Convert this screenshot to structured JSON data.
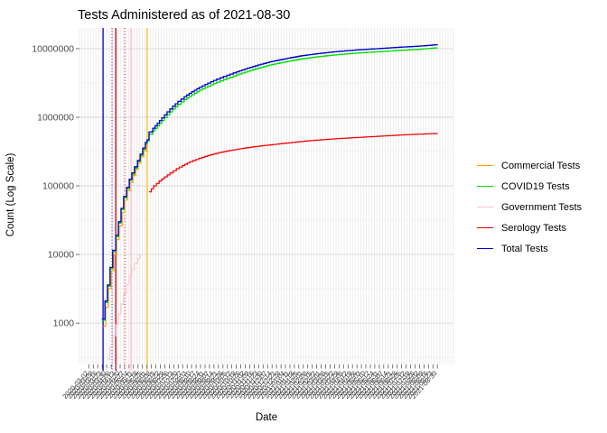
{
  "title": "Tests Administered as of 2021-08-30",
  "x_axis": {
    "label": "Date",
    "tick_dates": [
      "2020-03-02",
      "2020-03-09",
      "2020-03-16",
      "2020-03-23",
      "2020-03-30",
      "2020-04-06",
      "2020-04-13",
      "2020-04-20",
      "2020-04-27",
      "2020-05-04",
      "2020-05-11",
      "2020-05-18",
      "2020-05-25",
      "2020-06-01",
      "2020-06-08",
      "2020-06-15",
      "2020-06-22",
      "2020-06-29",
      "2020-07-06",
      "2020-07-13",
      "2020-07-20",
      "2020-07-27",
      "2020-08-03",
      "2020-08-10",
      "2020-08-17",
      "2020-08-24",
      "2020-08-31",
      "2020-09-07",
      "2020-09-14",
      "2020-09-21",
      "2020-09-28",
      "2020-10-05",
      "2020-10-12",
      "2020-10-19",
      "2020-10-26",
      "2020-11-02",
      "2020-11-09",
      "2020-11-16",
      "2020-11-23",
      "2020-11-30",
      "2020-12-07",
      "2020-12-14",
      "2020-12-21",
      "2020-12-28",
      "2021-01-04",
      "2021-01-11",
      "2021-01-18",
      "2021-01-25",
      "2021-02-01",
      "2021-02-08",
      "2021-02-15",
      "2021-02-22",
      "2021-03-01",
      "2021-03-08",
      "2021-03-15",
      "2021-03-22",
      "2021-03-29",
      "2021-04-05",
      "2021-04-12",
      "2021-04-19",
      "2021-04-26",
      "2021-05-03",
      "2021-05-10",
      "2021-05-17",
      "2021-05-24",
      "2021-05-31",
      "2021-06-07",
      "2021-06-14",
      "2021-06-21",
      "2021-06-28",
      "2021-07-05",
      "2021-07-12",
      "2021-07-19",
      "2021-07-26",
      "2021-08-02",
      "2021-08-09",
      "2021-08-16",
      "2021-08-23",
      "2021-08-30"
    ]
  },
  "y_axis": {
    "label": "Count (Log Scale)",
    "tick_labels": [
      "10000000",
      "1000000",
      "100000",
      "10000",
      "1000"
    ],
    "tick_values": [
      10000000,
      1000000,
      100000,
      10000,
      1000
    ]
  },
  "legend": {
    "items": [
      {
        "label": "Commercial Tests",
        "color": "#FFA500"
      },
      {
        "label": "COVID19 Tests",
        "color": "#00DD00"
      },
      {
        "label": "Government Tests",
        "color": "#FFC0CB"
      },
      {
        "label": "Serology Tests",
        "color": "#EE0000"
      },
      {
        "label": "Total Tests",
        "color": "#0000CD"
      }
    ]
  },
  "chart_data": {
    "type": "line",
    "title": "Tests Administered as of 2021-08-30",
    "xlabel": "Date",
    "ylabel": "Count (Log Scale)",
    "y_scale": "log10",
    "ylim": [
      250,
      20000000
    ],
    "grid": true,
    "legend_position": "right",
    "line_style": "step-after",
    "series": [
      {
        "name": "Government Tests",
        "color": "#FFC0CB",
        "width": 1.0,
        "points": [
          [
            0.075,
            300
          ],
          [
            0.082,
            450
          ],
          [
            0.089,
            650
          ],
          [
            0.097,
            950
          ],
          [
            0.104,
            1350
          ],
          [
            0.111,
            1900
          ],
          [
            0.118,
            2700
          ],
          [
            0.126,
            3700
          ],
          [
            0.133,
            4900
          ],
          [
            0.14,
            6100
          ],
          [
            0.147,
            7400
          ],
          [
            0.155,
            8800
          ],
          [
            0.162,
            10200
          ]
        ]
      },
      {
        "name": "Commercial Tests",
        "color": "#FFA500",
        "width": 1.2,
        "points": [
          [
            0.063,
            900
          ],
          [
            0.07,
            1700
          ],
          [
            0.077,
            3200
          ],
          [
            0.085,
            5800
          ],
          [
            0.092,
            10000
          ],
          [
            0.099,
            16500
          ],
          [
            0.106,
            26000
          ],
          [
            0.114,
            41000
          ],
          [
            0.121,
            62000
          ],
          [
            0.128,
            85000
          ],
          [
            0.135,
            112000
          ],
          [
            0.143,
            142000
          ],
          [
            0.15,
            175000
          ],
          [
            0.157,
            215000
          ],
          [
            0.164,
            265000
          ],
          [
            0.172,
            325000
          ],
          [
            0.179,
            400000
          ],
          [
            0.181,
            440000
          ]
        ]
      },
      {
        "name": "COVID19 Tests",
        "color": "#00DD00",
        "width": 1.3,
        "points": [
          [
            0.06,
            1100
          ],
          [
            0.068,
            2000
          ],
          [
            0.075,
            3450
          ],
          [
            0.082,
            6200
          ],
          [
            0.089,
            11000
          ],
          [
            0.097,
            18200
          ],
          [
            0.104,
            28800
          ],
          [
            0.111,
            45000
          ],
          [
            0.118,
            67000
          ],
          [
            0.126,
            91000
          ],
          [
            0.133,
            120000
          ],
          [
            0.14,
            148000
          ],
          [
            0.147,
            182000
          ],
          [
            0.155,
            225000
          ],
          [
            0.162,
            278000
          ],
          [
            0.169,
            340000
          ],
          [
            0.176,
            412000
          ],
          [
            0.181,
            450000
          ],
          [
            0.186,
            565000
          ],
          [
            0.196,
            635000
          ],
          [
            0.208,
            750000
          ],
          [
            0.22,
            895000
          ],
          [
            0.234,
            1090000
          ],
          [
            0.249,
            1320000
          ],
          [
            0.263,
            1540000
          ],
          [
            0.28,
            1810000
          ],
          [
            0.3,
            2120000
          ],
          [
            0.321,
            2480000
          ],
          [
            0.343,
            2840000
          ],
          [
            0.367,
            3240000
          ],
          [
            0.394,
            3690000
          ],
          [
            0.42,
            4140000
          ],
          [
            0.449,
            4680000
          ],
          [
            0.478,
            5220000
          ],
          [
            0.507,
            5760000
          ],
          [
            0.536,
            6210000
          ],
          [
            0.565,
            6660000
          ],
          [
            0.594,
            7110000
          ],
          [
            0.623,
            7470000
          ],
          [
            0.652,
            7790000
          ],
          [
            0.681,
            8100000
          ],
          [
            0.71,
            8370000
          ],
          [
            0.739,
            8600000
          ],
          [
            0.768,
            8820000
          ],
          [
            0.797,
            9000000
          ],
          [
            0.826,
            9230000
          ],
          [
            0.855,
            9450000
          ],
          [
            0.884,
            9630000
          ],
          [
            0.913,
            9860000
          ],
          [
            0.937,
            10080000
          ],
          [
            0.957,
            10350000
          ]
        ]
      },
      {
        "name": "Serology Tests",
        "color": "#EE0000",
        "width": 1.2,
        "points": [
          [
            0.186,
            82000
          ],
          [
            0.198,
            100000
          ],
          [
            0.213,
            118000
          ],
          [
            0.227,
            135000
          ],
          [
            0.242,
            155000
          ],
          [
            0.259,
            178000
          ],
          [
            0.275,
            198000
          ],
          [
            0.295,
            225000
          ],
          [
            0.319,
            252000
          ],
          [
            0.343,
            278000
          ],
          [
            0.372,
            305000
          ],
          [
            0.401,
            328000
          ],
          [
            0.43,
            348000
          ],
          [
            0.459,
            368000
          ],
          [
            0.488,
            385000
          ],
          [
            0.517,
            400000
          ],
          [
            0.551,
            420000
          ],
          [
            0.585,
            440000
          ],
          [
            0.618,
            458000
          ],
          [
            0.652,
            472000
          ],
          [
            0.686,
            488000
          ],
          [
            0.72,
            500000
          ],
          [
            0.754,
            512000
          ],
          [
            0.787,
            525000
          ],
          [
            0.821,
            538000
          ],
          [
            0.855,
            550000
          ],
          [
            0.889,
            562000
          ],
          [
            0.923,
            572000
          ],
          [
            0.957,
            582000
          ]
        ]
      },
      {
        "name": "Total Tests",
        "color": "#0000CD",
        "width": 1.3,
        "points": [
          [
            0.06,
            1150
          ],
          [
            0.068,
            2100
          ],
          [
            0.075,
            3600
          ],
          [
            0.082,
            6500
          ],
          [
            0.089,
            11500
          ],
          [
            0.097,
            19000
          ],
          [
            0.104,
            30000
          ],
          [
            0.111,
            47000
          ],
          [
            0.118,
            70000
          ],
          [
            0.126,
            95000
          ],
          [
            0.133,
            125000
          ],
          [
            0.14,
            155000
          ],
          [
            0.147,
            190000
          ],
          [
            0.155,
            235000
          ],
          [
            0.162,
            290000
          ],
          [
            0.169,
            355000
          ],
          [
            0.176,
            430000
          ],
          [
            0.181,
            470000
          ],
          [
            0.186,
            610000
          ],
          [
            0.196,
            690000
          ],
          [
            0.208,
            820000
          ],
          [
            0.22,
            980000
          ],
          [
            0.234,
            1200000
          ],
          [
            0.249,
            1450000
          ],
          [
            0.263,
            1700000
          ],
          [
            0.28,
            2000000
          ],
          [
            0.3,
            2350000
          ],
          [
            0.321,
            2750000
          ],
          [
            0.343,
            3150000
          ],
          [
            0.367,
            3600000
          ],
          [
            0.394,
            4100000
          ],
          [
            0.42,
            4600000
          ],
          [
            0.449,
            5200000
          ],
          [
            0.478,
            5800000
          ],
          [
            0.507,
            6400000
          ],
          [
            0.536,
            6900000
          ],
          [
            0.565,
            7400000
          ],
          [
            0.594,
            7900000
          ],
          [
            0.623,
            8300000
          ],
          [
            0.652,
            8650000
          ],
          [
            0.681,
            9000000
          ],
          [
            0.71,
            9300000
          ],
          [
            0.739,
            9550000
          ],
          [
            0.768,
            9800000
          ],
          [
            0.797,
            10000000
          ],
          [
            0.826,
            10250000
          ],
          [
            0.855,
            10500000
          ],
          [
            0.884,
            10700000
          ],
          [
            0.913,
            10950000
          ],
          [
            0.937,
            11200000
          ],
          [
            0.957,
            11500000
          ]
        ]
      }
    ],
    "vlines": [
      {
        "x_frac": 0.063,
        "color": "#0000CD",
        "style": "solid"
      },
      {
        "x_frac": 0.087,
        "color": "#0000CD",
        "style": "dotted"
      },
      {
        "x_frac": 0.097,
        "color": "#CC0000",
        "style": "solid"
      },
      {
        "x_frac": 0.121,
        "color": "#CC0000",
        "style": "dotted"
      },
      {
        "x_frac": 0.138,
        "color": "#FFB6C1",
        "style": "solid"
      },
      {
        "x_frac": 0.157,
        "color": "#FFC0CB",
        "style": "dotted"
      },
      {
        "x_frac": 0.181,
        "color": "#FFC125",
        "style": "solid"
      }
    ]
  }
}
